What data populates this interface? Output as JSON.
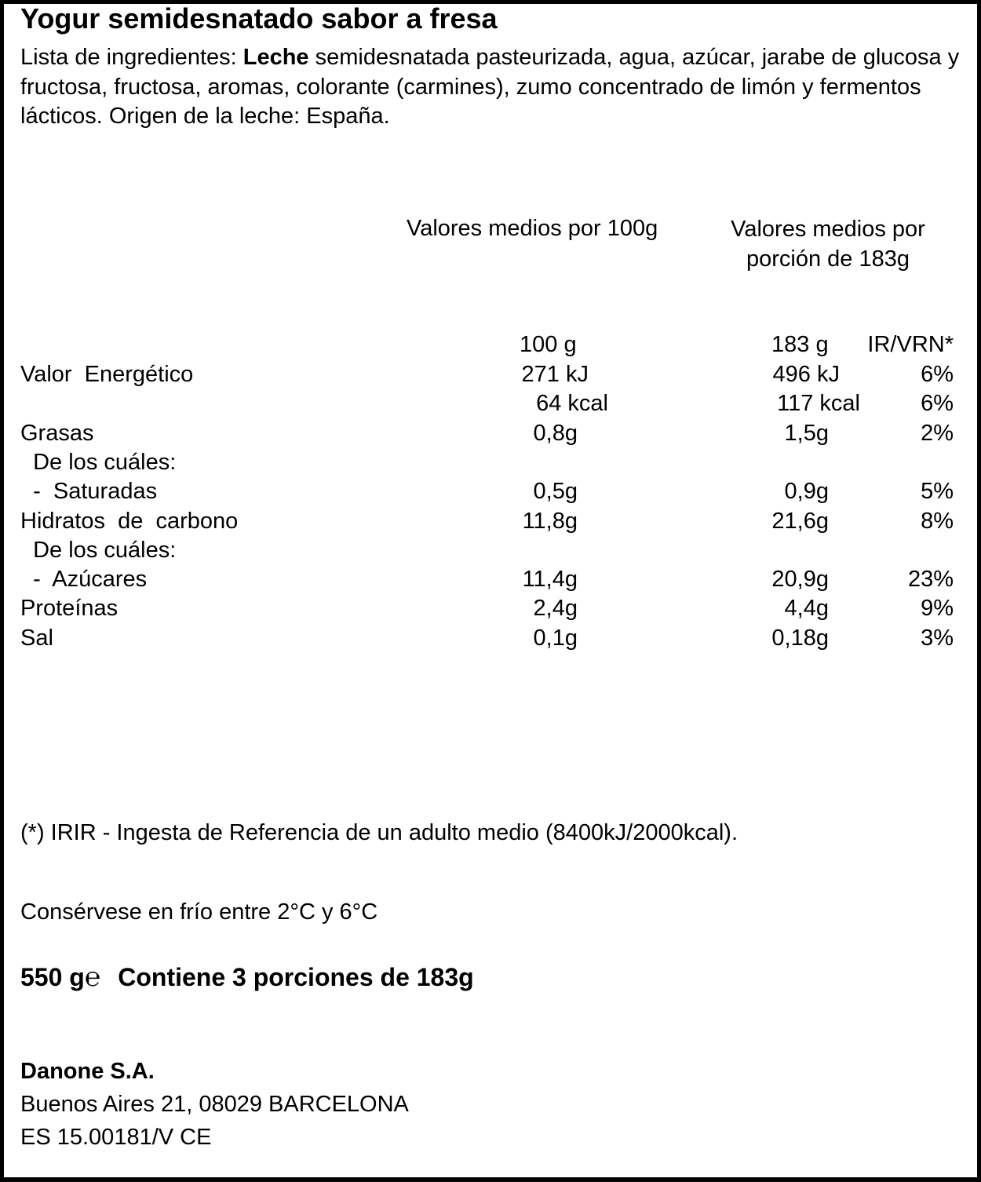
{
  "title": "Yogur semidesnatado sabor a fresa",
  "ingredients": {
    "prefix": "Lista de ingredientes: ",
    "bold": "Leche",
    "rest": " semidesnatada pasteurizada, agua, azúcar, jarabe de glucosa y fructosa, fructosa, aromas, colorante (carmines), zumo concentrado de limón y fermentos lácticos. Origen de la leche: España."
  },
  "nutrition": {
    "header_per100": "Valores medios por 100g",
    "header_portion": "Valores medios por porción de 183g",
    "col_100": "100 g",
    "col_183": "183 g",
    "col_ir": "IR/VRN*",
    "rows": [
      {
        "label": "Valor  Energético",
        "v100": "271 kJ",
        "v183": "496 kJ",
        "ir": "6%"
      },
      {
        "label": "",
        "v100": "64 kcal",
        "v183": "117 kcal",
        "ir": "6%"
      },
      {
        "label": "Grasas",
        "v100": "0,8g",
        "v183": "1,5g",
        "ir": "2%"
      },
      {
        "label": "  De los cuáles:",
        "v100": "",
        "v183": "",
        "ir": ""
      },
      {
        "label": "  -  Saturadas",
        "v100": "0,5g",
        "v183": "0,9g",
        "ir": "5%"
      },
      {
        "label": "Hidratos  de  carbono",
        "v100": "11,8g",
        "v183": "21,6g",
        "ir": "8%"
      },
      {
        "label": "  De los cuáles:",
        "v100": "",
        "v183": "",
        "ir": ""
      },
      {
        "label": "  -  Azúcares",
        "v100": "11,4g",
        "v183": "20,9g",
        "ir": "23%"
      },
      {
        "label": "Proteínas",
        "v100": "2,4g",
        "v183": "4,4g",
        "ir": "9%"
      },
      {
        "label": "Sal",
        "v100": "0,1g",
        "v183": "0,18g",
        "ir": "3%"
      }
    ]
  },
  "footnote": "(*) IRIR - Ingesta de Referencia de un adulto medio (8400kJ/2000kcal).",
  "storage": "Consérvese en frío entre 2°C y 6°C",
  "net_weight": "550 g",
  "estimated_sign": "℮",
  "portions": "Contiene 3 porciones de 183g",
  "company": {
    "name": "Danone S.A.",
    "address": "Buenos Aires 21, 08029 BARCELONA",
    "registry": "ES 15.00181/V CE"
  }
}
